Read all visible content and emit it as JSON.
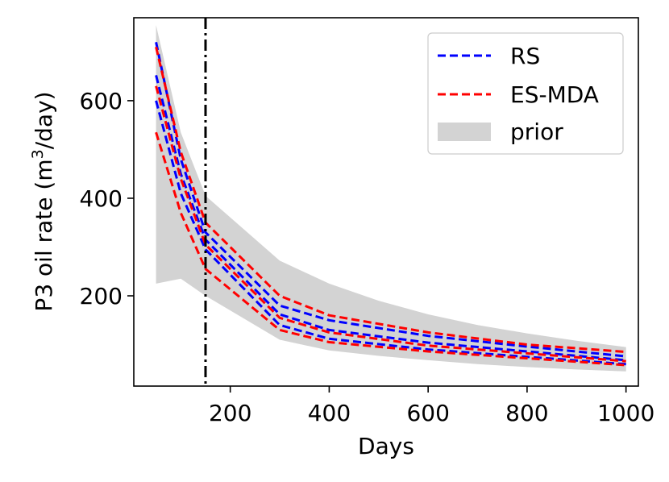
{
  "chart_data": {
    "type": "line",
    "xlabel": "Days",
    "ylabel_main": "P3 oil rate (m",
    "ylabel_sup": "3",
    "ylabel_tail": "/day)",
    "xlim": [
      5,
      1025
    ],
    "ylim": [
      15,
      770
    ],
    "xticks": [
      200,
      400,
      600,
      800,
      1000
    ],
    "yticks": [
      200,
      400,
      600
    ],
    "xtick_labels": [
      "200",
      "400",
      "600",
      "800",
      "1000"
    ],
    "ytick_labels": [
      "200",
      "400",
      "600"
    ],
    "vline_x": 150,
    "prior_band": {
      "name": "prior",
      "color": "#d3d3d3",
      "x": [
        50,
        100,
        150,
        300,
        400,
        500,
        600,
        700,
        800,
        900,
        1000
      ],
      "upper": [
        755,
        535,
        405,
        272,
        225,
        190,
        162,
        140,
        123,
        108,
        95
      ],
      "lower": [
        225,
        235,
        200,
        110,
        88,
        77,
        68,
        60,
        54,
        49,
        45
      ]
    },
    "series": [
      {
        "name": "RS",
        "color": "#0000ff",
        "x": [
          50,
          100,
          150,
          300,
          400,
          600,
          800,
          1000
        ],
        "values": [
          720,
          480,
          330,
          180,
          150,
          118,
          96,
          76
        ]
      },
      {
        "name": "RS",
        "color": "#0000ff",
        "x": [
          50,
          100,
          150,
          300,
          400,
          600,
          800,
          1000
        ],
        "values": [
          652,
          450,
          315,
          162,
          130,
          104,
          86,
          68
        ]
      },
      {
        "name": "RS",
        "color": "#0000ff",
        "x": [
          50,
          100,
          150,
          300,
          400,
          600,
          800,
          1000
        ],
        "values": [
          600,
          410,
          295,
          140,
          112,
          90,
          75,
          60
        ]
      },
      {
        "name": "ES-MDA",
        "color": "#ff0000",
        "x": [
          50,
          100,
          150,
          300,
          400,
          600,
          800,
          1000
        ],
        "values": [
          710,
          495,
          350,
          200,
          160,
          125,
          100,
          85
        ]
      },
      {
        "name": "ES-MDA",
        "color": "#ff0000",
        "x": [
          50,
          100,
          150,
          300,
          400,
          600,
          800,
          1000
        ],
        "values": [
          630,
          440,
          305,
          155,
          125,
          98,
          82,
          66
        ]
      },
      {
        "name": "ES-MDA",
        "color": "#ff0000",
        "x": [
          50,
          100,
          150,
          300,
          400,
          600,
          800,
          1000
        ],
        "values": [
          535,
          370,
          255,
          130,
          105,
          86,
          72,
          58
        ]
      }
    ],
    "legend": {
      "placement": "top-right",
      "entries": [
        {
          "label": "RS",
          "color": "#0000ff",
          "kind": "dashed"
        },
        {
          "label": "ES-MDA",
          "color": "#ff0000",
          "kind": "dashed"
        },
        {
          "label": "prior",
          "color": "#d3d3d3",
          "kind": "patch"
        }
      ]
    }
  }
}
